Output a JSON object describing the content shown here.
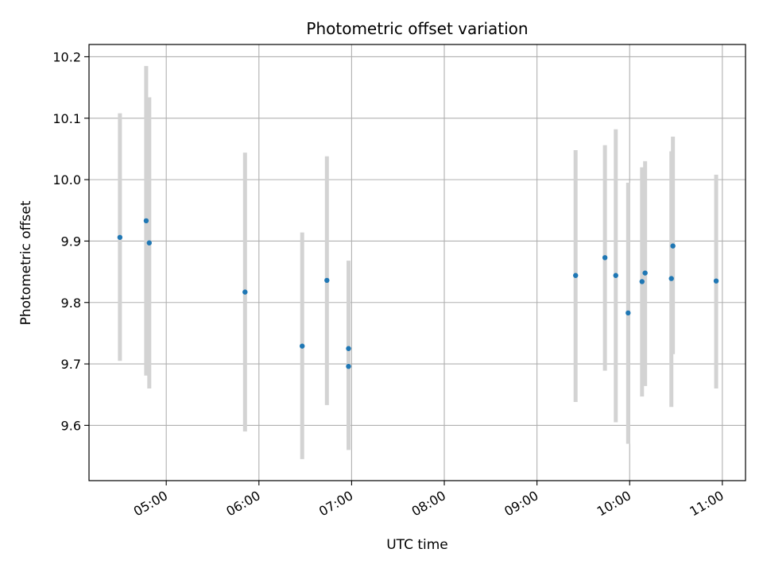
{
  "chart_data": {
    "type": "scatter",
    "title": "Photometric offset variation",
    "xlabel": "UTC time",
    "ylabel": "Photometric offset",
    "grid": true,
    "xlim": [
      "04:10",
      "11:15"
    ],
    "ylim": [
      9.51,
      10.22
    ],
    "xticks": [
      "05:00",
      "06:00",
      "07:00",
      "08:00",
      "09:00",
      "10:00",
      "11:00"
    ],
    "yticks": [
      "9.6",
      "9.7",
      "9.8",
      "9.9",
      "10.0",
      "10.1",
      "10.2"
    ],
    "marker_color": "#1f77b4",
    "errorbar_color": "#d3d3d3",
    "points": [
      {
        "x": "04:30",
        "y": 9.906,
        "ylow": 9.705,
        "yhigh": 10.108
      },
      {
        "x": "04:47",
        "y": 9.933,
        "ylow": 9.681,
        "yhigh": 10.185
      },
      {
        "x": "04:49",
        "y": 9.897,
        "ylow": 9.66,
        "yhigh": 10.134
      },
      {
        "x": "05:51",
        "y": 9.817,
        "ylow": 9.59,
        "yhigh": 10.044
      },
      {
        "x": "06:28",
        "y": 9.729,
        "ylow": 9.545,
        "yhigh": 9.914
      },
      {
        "x": "06:44",
        "y": 9.836,
        "ylow": 9.633,
        "yhigh": 10.038
      },
      {
        "x": "06:58",
        "y": 9.725,
        "ylow": 9.581,
        "yhigh": 9.868
      },
      {
        "x": "06:58",
        "y": 9.696,
        "ylow": 9.56,
        "yhigh": 9.832
      },
      {
        "x": "09:25",
        "y": 9.844,
        "ylow": 9.638,
        "yhigh": 10.048
      },
      {
        "x": "09:44",
        "y": 9.873,
        "ylow": 9.689,
        "yhigh": 10.056
      },
      {
        "x": "09:51",
        "y": 9.844,
        "ylow": 9.605,
        "yhigh": 10.082
      },
      {
        "x": "09:59",
        "y": 9.783,
        "ylow": 9.57,
        "yhigh": 9.995
      },
      {
        "x": "10:08",
        "y": 9.834,
        "ylow": 9.647,
        "yhigh": 10.02
      },
      {
        "x": "10:10",
        "y": 9.848,
        "ylow": 9.664,
        "yhigh": 10.03
      },
      {
        "x": "10:27",
        "y": 9.839,
        "ylow": 9.63,
        "yhigh": 10.046
      },
      {
        "x": "10:28",
        "y": 9.892,
        "ylow": 9.716,
        "yhigh": 10.07
      },
      {
        "x": "10:56",
        "y": 9.835,
        "ylow": 9.66,
        "yhigh": 10.008
      }
    ]
  }
}
